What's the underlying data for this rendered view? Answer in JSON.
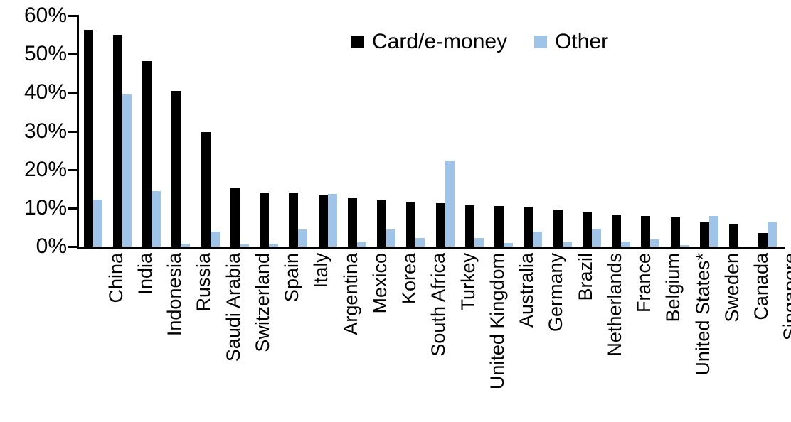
{
  "chart_data": {
    "type": "bar",
    "title": "",
    "xlabel": "",
    "ylabel": "",
    "grid": false,
    "legend_position": "top-center",
    "ylim": [
      0,
      60
    ],
    "y_ticks": [
      {
        "value": 0,
        "label": "0%"
      },
      {
        "value": 10,
        "label": "10%"
      },
      {
        "value": 20,
        "label": "20%"
      },
      {
        "value": 30,
        "label": "30%"
      },
      {
        "value": 40,
        "label": "40%"
      },
      {
        "value": 50,
        "label": "50%"
      },
      {
        "value": 60,
        "label": "60%"
      }
    ],
    "categories": [
      "China",
      "India",
      "Indonesia",
      "Russia",
      "Saudi Arabia",
      "Switzerland",
      "Spain",
      "Italy",
      "Argentina",
      "Mexico",
      "Korea",
      "South Africa",
      "Turkey",
      "United Kingdom",
      "Australia",
      "Germany",
      "Brazil",
      "Netherlands",
      "France",
      "Belgium",
      "United States*",
      "Sweden",
      "Canada",
      "Singapore"
    ],
    "series": [
      {
        "name": "Card/e-money",
        "color": "#000000",
        "values": [
          56.3,
          55.0,
          48.2,
          40.4,
          29.8,
          15.4,
          14.1,
          14.0,
          13.3,
          12.8,
          12.0,
          11.6,
          11.3,
          10.7,
          10.5,
          10.4,
          9.6,
          8.9,
          8.4,
          7.9,
          7.5,
          6.3,
          5.7,
          3.6
        ]
      },
      {
        "name": "Other",
        "color": "#a0c4e8",
        "values": [
          12.2,
          39.6,
          14.4,
          0.8,
          3.8,
          0.6,
          0.8,
          4.5,
          13.7,
          1.1,
          4.4,
          2.2,
          22.4,
          2.2,
          1.0,
          3.8,
          1.1,
          4.6,
          1.3,
          1.8,
          0.4,
          7.9,
          0.0,
          6.5
        ]
      }
    ]
  }
}
